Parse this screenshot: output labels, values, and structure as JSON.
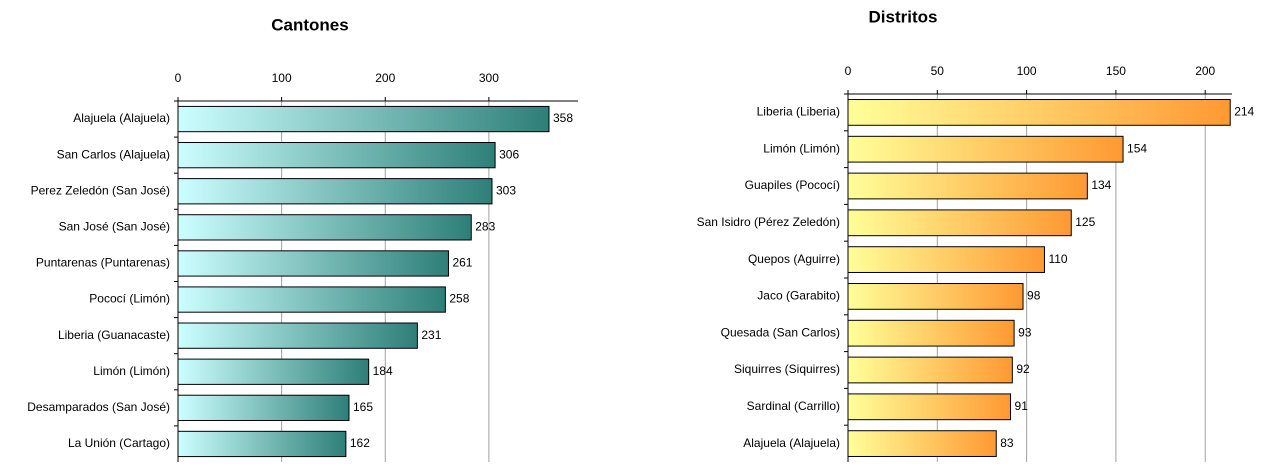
{
  "chart_data": [
    {
      "type": "bar",
      "orientation": "horizontal",
      "title": "Cantones",
      "categories": [
        "Alajuela (Alajuela)",
        "San Carlos (Alajuela)",
        "Perez Zeledón (San José)",
        "San José (San José)",
        "Puntarenas (Puntarenas)",
        "Pococí (Limón)",
        "Liberia (Guanacaste)",
        "Limón (Limón)",
        "Desamparados (San José)",
        "La Unión (Cartago)"
      ],
      "values": [
        358,
        306,
        303,
        283,
        261,
        258,
        231,
        184,
        165,
        162
      ],
      "colors": [
        "#ccffff",
        "#2e7f78"
      ],
      "xlim": [
        0,
        386
      ],
      "xticks": [
        0,
        100,
        200,
        300
      ],
      "grid": true
    },
    {
      "type": "bar",
      "orientation": "horizontal",
      "title": "Distritos",
      "categories": [
        "Liberia (Liberia)",
        "Limón (Limón)",
        "Guapiles (Pococí)",
        "San Isidro (Pérez Zeledón)",
        "Quepos (Aguirre)",
        "Jaco (Garabito)",
        "Quesada (San Carlos)",
        "Siquirres (Siquirres)",
        "Sardinal (Carrillo)",
        "Alajuela (Alajuela)"
      ],
      "values": [
        214,
        154,
        134,
        125,
        110,
        98,
        93,
        92,
        91,
        83
      ],
      "colors": [
        "#ffff99",
        "#ff9933"
      ],
      "xlim": [
        0,
        215
      ],
      "xticks": [
        0,
        50,
        100,
        150,
        200
      ],
      "grid": true
    }
  ]
}
